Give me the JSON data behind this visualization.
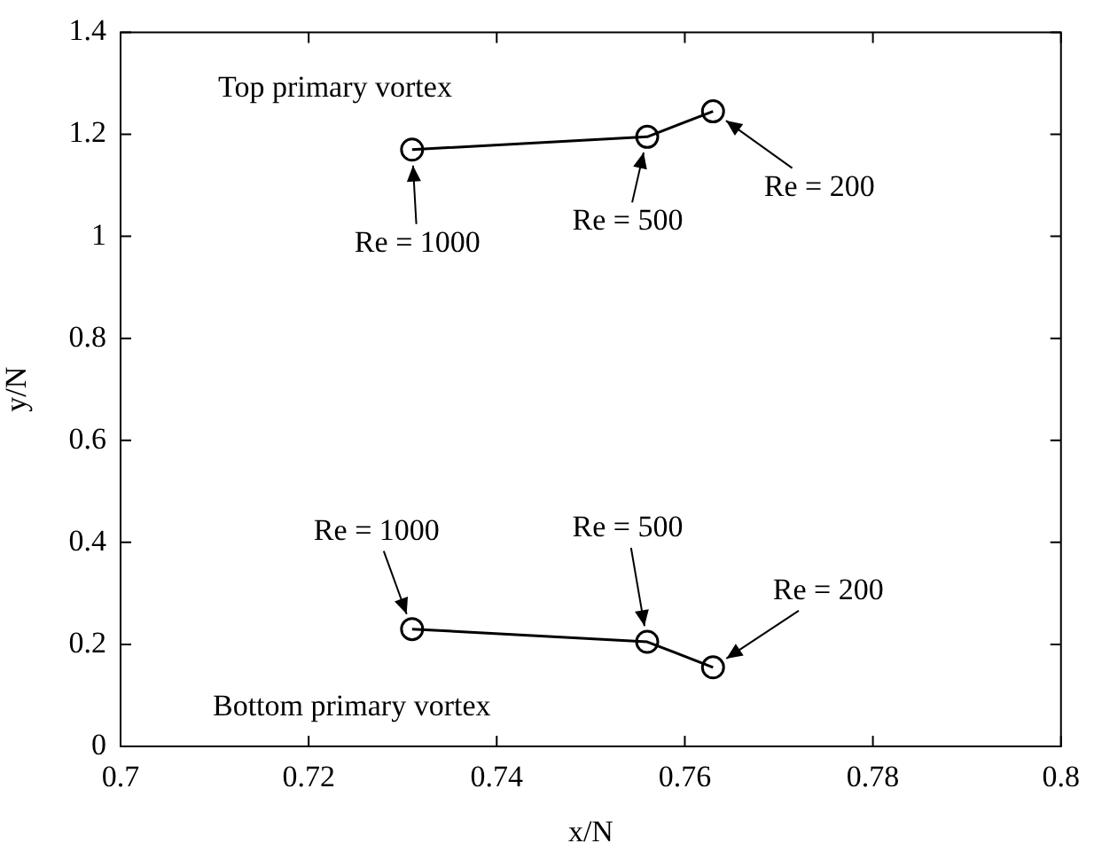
{
  "chart_data": {
    "type": "line",
    "xlabel": "x/N",
    "ylabel": "y/N",
    "series": [
      {
        "color": "#000000",
        "x": [
          0.731,
          0.756,
          0.763
        ],
        "values": [
          1.17,
          1.195,
          1.245
        ]
      },
      {
        "color": "#000000",
        "x": [
          0.731,
          0.756,
          0.763
        ],
        "values": [
          0.23,
          0.205,
          0.155
        ]
      }
    ],
    "xlim": [
      0.7,
      0.8
    ],
    "xticks": [
      0.7,
      0.72,
      0.74,
      0.76,
      0.78,
      0.8
    ],
    "ylim": [
      0,
      1.4
    ],
    "yticks": [
      0,
      0.2,
      0.4,
      0.6,
      0.8,
      1,
      1.2,
      1.4
    ],
    "grid": false,
    "legend": false,
    "marker": "circle",
    "line_style": "solid",
    "annotations": [
      "Top primary vortex",
      "Bottom primary vortex",
      {
        "text": "Re = 1000",
        "x": 0.731,
        "y": 1.17
      },
      {
        "text": "Re = 500",
        "x": 0.756,
        "y": 1.195
      },
      {
        "text": "Re = 200",
        "x": 0.763,
        "y": 1.245
      },
      {
        "text": "Re = 1000",
        "x": 0.731,
        "y": 0.23
      },
      {
        "text": "Re = 500",
        "x": 0.756,
        "y": 0.205
      },
      {
        "text": "Re = 200",
        "x": 0.763,
        "y": 0.155
      }
    ]
  }
}
